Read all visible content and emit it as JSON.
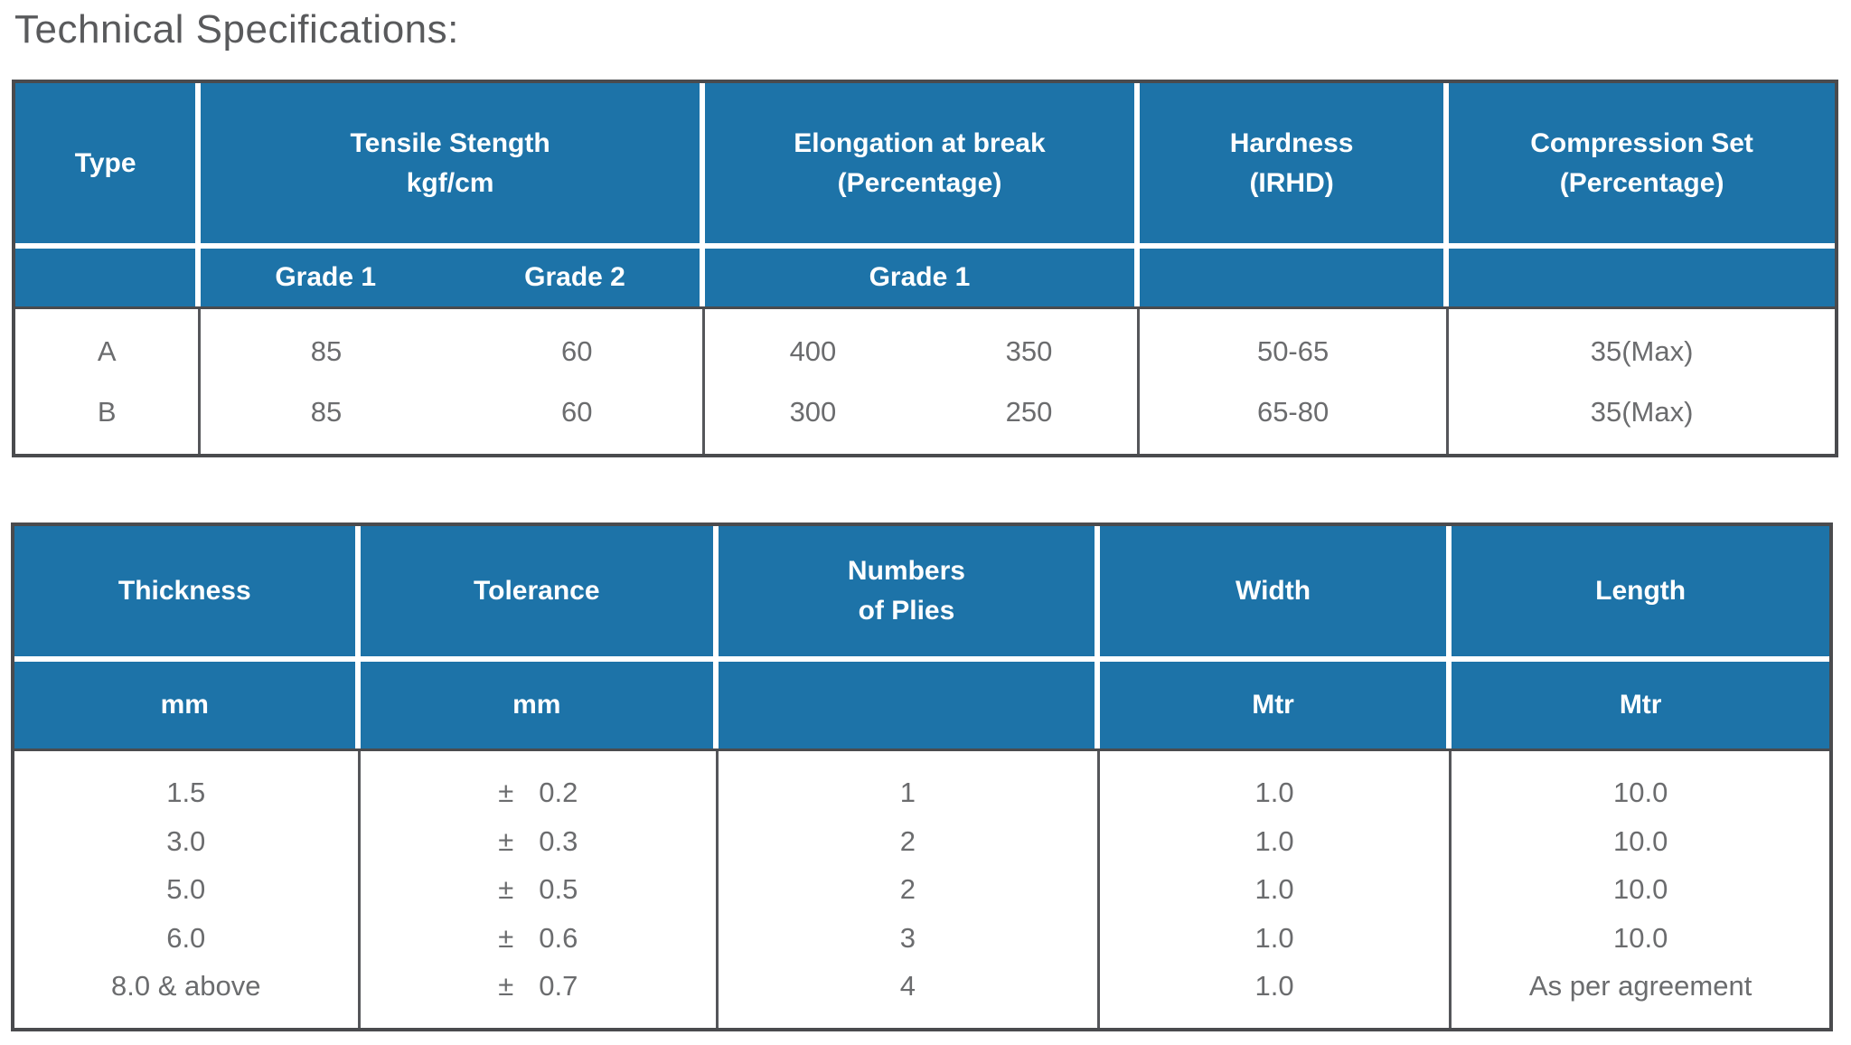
{
  "page": {
    "title": "Technical Specifications:"
  },
  "colors": {
    "header_background_blue": "#1d73a8",
    "header_text": "#ffffff",
    "body_text": "#6b6c6e",
    "outer_border": "#4a4b4e",
    "title_text": "#595a5c",
    "separator_white": "#ffffff"
  },
  "table1": {
    "headers": {
      "type": "Type",
      "tensile": "Tensile Stength\nkgf/cm",
      "elongation": "Elongation at break\n(Percentage)",
      "hardness": "Hardness\n(IRHD)",
      "compression": "Compression Set\n(Percentage)"
    },
    "subheaders": {
      "tensile_grade1": "Grade 1",
      "tensile_grade2": "Grade 2",
      "elongation_grade": "Grade 1"
    },
    "rows": [
      {
        "type": "A",
        "tensile_g1": "85",
        "tensile_g2": "60",
        "elong_c1": "400",
        "elong_c2": "350",
        "hardness": "50-65",
        "compression": "35(Max)"
      },
      {
        "type": "B",
        "tensile_g1": "85",
        "tensile_g2": "60",
        "elong_c1": "300",
        "elong_c2": "250",
        "hardness": "65-80",
        "compression": "35(Max)"
      }
    ]
  },
  "table2": {
    "headers": {
      "thickness": "Thickness",
      "tolerance": "Tolerance",
      "plies": "Numbers\nof Plies",
      "width": "Width",
      "length": "Length"
    },
    "units": {
      "thickness": "mm",
      "tolerance": "mm",
      "plies": "",
      "width": "Mtr",
      "length": "Mtr"
    },
    "rows": [
      {
        "thickness": "1.5",
        "tol_sign": "±",
        "tol_value": "0.2",
        "plies": "1",
        "width": "1.0",
        "length": "10.0"
      },
      {
        "thickness": "3.0",
        "tol_sign": "±",
        "tol_value": "0.3",
        "plies": "2",
        "width": "1.0",
        "length": "10.0"
      },
      {
        "thickness": "5.0",
        "tol_sign": "±",
        "tol_value": "0.5",
        "plies": "2",
        "width": "1.0",
        "length": "10.0"
      },
      {
        "thickness": "6.0",
        "tol_sign": "±",
        "tol_value": "0.6",
        "plies": "3",
        "width": "1.0",
        "length": "10.0"
      },
      {
        "thickness": "8.0 & above",
        "tol_sign": "±",
        "tol_value": "0.7",
        "plies": "4",
        "width": "1.0",
        "length": "As per agreement"
      }
    ]
  }
}
